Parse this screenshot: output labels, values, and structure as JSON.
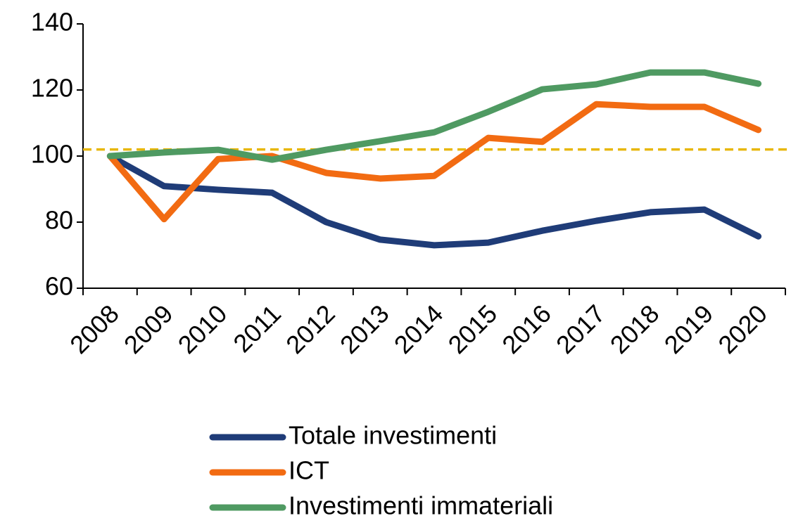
{
  "chart_data": {
    "type": "line",
    "categories": [
      "2008",
      "2009",
      "2010",
      "2011",
      "2012",
      "2013",
      "2014",
      "2015",
      "2016",
      "2017",
      "2018",
      "2019",
      "2020"
    ],
    "series": [
      {
        "name": "Totale investimenti",
        "color": "#1f3c78",
        "values": [
          100,
          90.9,
          89.8,
          88.9,
          80,
          74.7,
          73,
          73.8,
          77.4,
          80.4,
          83,
          83.8,
          75.7
        ]
      },
      {
        "name": "ICT",
        "color": "#f26b12",
        "values": [
          100,
          80.9,
          99.1,
          100,
          94.9,
          93.2,
          94,
          105.5,
          104.3,
          115.7,
          114.9,
          114.9,
          107.9
        ]
      },
      {
        "name": "Investimenti immateriali",
        "color": "#4f9a62",
        "values": [
          100,
          101.1,
          101.9,
          98.9,
          101.9,
          104.5,
          107.2,
          113.4,
          120.2,
          121.7,
          125.3,
          125.3,
          121.9
        ]
      }
    ],
    "reference_line": {
      "value": 102,
      "color": "#e8b70c"
    },
    "ylim": [
      60,
      140
    ],
    "yticks": [
      60,
      80,
      100,
      120,
      140
    ],
    "grid": false
  }
}
